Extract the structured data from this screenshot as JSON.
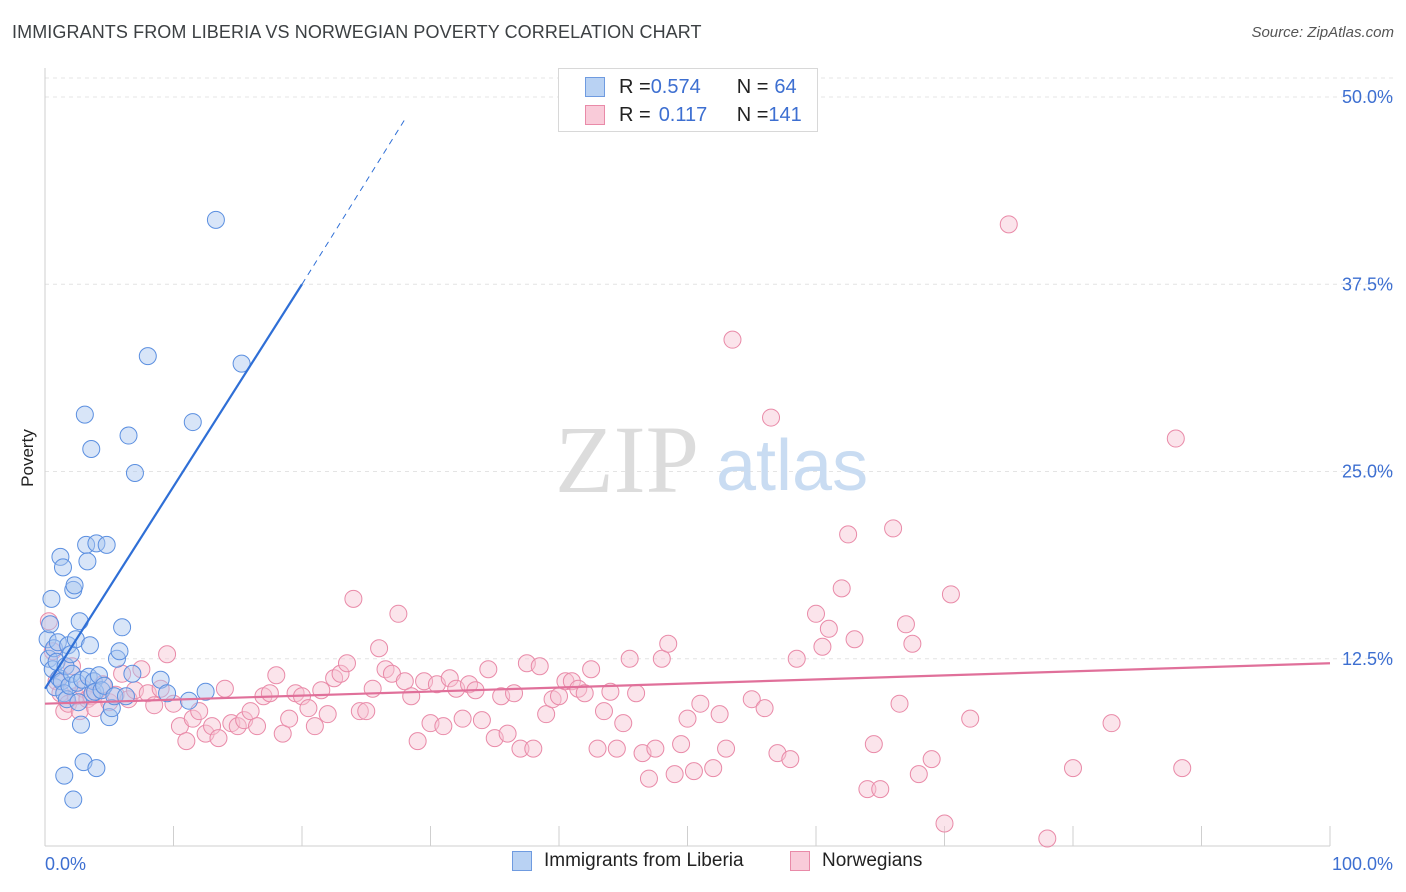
{
  "title": "IMMIGRANTS FROM LIBERIA VS NORWEGIAN POVERTY CORRELATION CHART",
  "source": "Source: ZipAtlas.com",
  "watermark": {
    "zip": "ZIP",
    "atlas": "atlas"
  },
  "legend": {
    "rows": [
      {
        "r_label": "R = ",
        "r_value": "0.574",
        "n_label": "N = ",
        "n_value": "64"
      },
      {
        "r_label": "R = ",
        "r_value": "0.117",
        "n_label": "N = ",
        "n_value": "141"
      }
    ]
  },
  "bottom_legend": [
    "Immigrants from Liberia",
    "Norwegians"
  ],
  "colors": {
    "blue": "#5b8fe0",
    "blue_fill": "#a9c6f0",
    "blue_line": "#2f6fd6",
    "pink": "#e98aa8",
    "pink_fill": "#f6c4d3",
    "pink_line": "#e0709a",
    "axis_text": "#3d6fd1"
  },
  "chart_data": {
    "type": "scatter",
    "ylabel": "Poverty",
    "xlabel": "",
    "xlim": [
      0,
      100
    ],
    "ylim": [
      0,
      50
    ],
    "x_tick_labels": [
      "0.0%",
      "100.0%"
    ],
    "y_ticks": [
      12.5,
      25.0,
      37.5,
      50.0
    ],
    "y_tick_labels": [
      "12.5%",
      "25.0%",
      "37.5%",
      "50.0%"
    ],
    "grid": true,
    "series": [
      {
        "name": "Immigrants from Liberia",
        "r": 0.574,
        "n": 64,
        "trend": {
          "x0": 0,
          "y0": 10.5,
          "x1": 20,
          "y1": 37.5,
          "dash_to_x": 28,
          "dash_to_y": 48.5
        },
        "points": [
          [
            0.2,
            13.8
          ],
          [
            0.3,
            12.5
          ],
          [
            0.4,
            14.8
          ],
          [
            0.5,
            16.5
          ],
          [
            0.6,
            11.8
          ],
          [
            0.7,
            13.2
          ],
          [
            0.8,
            10.6
          ],
          [
            0.9,
            12.3
          ],
          [
            1.0,
            13.6
          ],
          [
            1.1,
            11.2
          ],
          [
            1.2,
            19.3
          ],
          [
            1.3,
            11.0
          ],
          [
            1.4,
            18.6
          ],
          [
            1.5,
            10.2
          ],
          [
            1.6,
            12.0
          ],
          [
            1.7,
            9.8
          ],
          [
            1.8,
            13.4
          ],
          [
            1.9,
            10.7
          ],
          [
            2.0,
            12.8
          ],
          [
            2.1,
            11.5
          ],
          [
            2.2,
            17.1
          ],
          [
            2.3,
            17.4
          ],
          [
            2.4,
            13.8
          ],
          [
            2.5,
            10.9
          ],
          [
            2.6,
            9.6
          ],
          [
            2.7,
            15.0
          ],
          [
            2.8,
            8.1
          ],
          [
            2.9,
            11.1
          ],
          [
            3.0,
            5.6
          ],
          [
            3.1,
            28.8
          ],
          [
            3.2,
            20.1
          ],
          [
            3.3,
            19.0
          ],
          [
            3.4,
            11.3
          ],
          [
            3.5,
            13.4
          ],
          [
            3.6,
            26.5
          ],
          [
            3.7,
            10.2
          ],
          [
            3.8,
            11.0
          ],
          [
            3.9,
            10.3
          ],
          [
            4.0,
            20.2
          ],
          [
            4.2,
            11.4
          ],
          [
            4.4,
            10.4
          ],
          [
            4.6,
            10.7
          ],
          [
            4.8,
            20.1
          ],
          [
            5.0,
            8.6
          ],
          [
            5.2,
            9.2
          ],
          [
            5.4,
            10.0
          ],
          [
            5.6,
            12.5
          ],
          [
            5.8,
            13.0
          ],
          [
            6.0,
            14.6
          ],
          [
            6.3,
            10.0
          ],
          [
            6.5,
            27.4
          ],
          [
            6.8,
            11.5
          ],
          [
            7.0,
            24.9
          ],
          [
            8.0,
            32.7
          ],
          [
            9.0,
            11.1
          ],
          [
            9.5,
            10.2
          ],
          [
            11.2,
            9.7
          ],
          [
            11.5,
            28.3
          ],
          [
            12.5,
            10.3
          ],
          [
            13.3,
            41.8
          ],
          [
            15.3,
            32.2
          ],
          [
            4.0,
            5.2
          ],
          [
            1.5,
            4.7
          ],
          [
            2.2,
            3.1
          ]
        ]
      },
      {
        "name": "Norwegians",
        "r": 0.117,
        "n": 141,
        "trend": {
          "x0": 0,
          "y0": 9.5,
          "x1": 100,
          "y1": 12.2
        },
        "points": [
          [
            0.3,
            15.0
          ],
          [
            0.6,
            13.0
          ],
          [
            0.9,
            11.0
          ],
          [
            1.2,
            10.2
          ],
          [
            1.5,
            9.0
          ],
          [
            1.8,
            9.5
          ],
          [
            2.1,
            12.0
          ],
          [
            2.4,
            10.0
          ],
          [
            2.7,
            9.0
          ],
          [
            3.0,
            10.5
          ],
          [
            3.3,
            9.8
          ],
          [
            3.6,
            10.0
          ],
          [
            3.9,
            9.2
          ],
          [
            4.5,
            10.8
          ],
          [
            5.0,
            9.6
          ],
          [
            5.5,
            10.1
          ],
          [
            6.0,
            11.5
          ],
          [
            6.5,
            9.8
          ],
          [
            7.0,
            10.4
          ],
          [
            7.5,
            11.8
          ],
          [
            8.0,
            10.2
          ],
          [
            8.5,
            9.4
          ],
          [
            9.0,
            10.5
          ],
          [
            9.5,
            12.8
          ],
          [
            10.0,
            9.5
          ],
          [
            10.5,
            8.0
          ],
          [
            11.0,
            7.0
          ],
          [
            11.5,
            8.5
          ],
          [
            12.0,
            9.0
          ],
          [
            12.5,
            7.5
          ],
          [
            13.0,
            8.0
          ],
          [
            13.5,
            7.2
          ],
          [
            14.0,
            10.5
          ],
          [
            14.5,
            8.2
          ],
          [
            15.0,
            8.0
          ],
          [
            15.5,
            8.4
          ],
          [
            16.0,
            9.0
          ],
          [
            16.5,
            8.0
          ],
          [
            17.0,
            10.0
          ],
          [
            17.5,
            10.2
          ],
          [
            18.0,
            11.4
          ],
          [
            18.5,
            7.5
          ],
          [
            19.0,
            8.5
          ],
          [
            19.5,
            10.2
          ],
          [
            20.0,
            10.0
          ],
          [
            20.5,
            9.2
          ],
          [
            21.0,
            8.0
          ],
          [
            21.5,
            10.4
          ],
          [
            22.0,
            8.8
          ],
          [
            22.5,
            11.2
          ],
          [
            23.0,
            11.5
          ],
          [
            23.5,
            12.2
          ],
          [
            24.0,
            16.5
          ],
          [
            24.5,
            9.0
          ],
          [
            25.0,
            9.0
          ],
          [
            25.5,
            10.5
          ],
          [
            26.0,
            13.2
          ],
          [
            26.5,
            11.8
          ],
          [
            27.0,
            11.5
          ],
          [
            27.5,
            15.5
          ],
          [
            28.0,
            11.0
          ],
          [
            28.5,
            10.0
          ],
          [
            29.0,
            7.0
          ],
          [
            29.5,
            11.0
          ],
          [
            30.0,
            8.2
          ],
          [
            30.5,
            10.8
          ],
          [
            31.0,
            8.0
          ],
          [
            31.5,
            11.2
          ],
          [
            32.0,
            10.5
          ],
          [
            32.5,
            8.5
          ],
          [
            33.0,
            10.8
          ],
          [
            33.5,
            10.4
          ],
          [
            34.0,
            8.4
          ],
          [
            34.5,
            11.8
          ],
          [
            35.0,
            7.2
          ],
          [
            35.5,
            10.0
          ],
          [
            36.0,
            7.5
          ],
          [
            36.5,
            10.2
          ],
          [
            37.0,
            6.5
          ],
          [
            37.5,
            12.2
          ],
          [
            38.0,
            6.5
          ],
          [
            38.5,
            12.0
          ],
          [
            39.0,
            8.8
          ],
          [
            39.5,
            9.8
          ],
          [
            40.0,
            10.0
          ],
          [
            40.5,
            11.0
          ],
          [
            41.0,
            11.0
          ],
          [
            41.5,
            10.5
          ],
          [
            42.0,
            10.2
          ],
          [
            42.5,
            11.8
          ],
          [
            43.0,
            6.5
          ],
          [
            43.5,
            9.0
          ],
          [
            44.0,
            10.3
          ],
          [
            44.5,
            6.5
          ],
          [
            45.0,
            8.2
          ],
          [
            45.5,
            12.5
          ],
          [
            46.0,
            10.2
          ],
          [
            46.5,
            6.2
          ],
          [
            47.0,
            4.5
          ],
          [
            47.5,
            6.5
          ],
          [
            48.0,
            12.5
          ],
          [
            48.5,
            13.5
          ],
          [
            49.0,
            4.8
          ],
          [
            49.5,
            6.8
          ],
          [
            50.0,
            8.5
          ],
          [
            50.5,
            5.0
          ],
          [
            51.0,
            9.5
          ],
          [
            52.0,
            5.2
          ],
          [
            52.5,
            8.8
          ],
          [
            53.0,
            6.5
          ],
          [
            53.5,
            33.8
          ],
          [
            55.0,
            9.8
          ],
          [
            56.0,
            9.2
          ],
          [
            56.5,
            28.6
          ],
          [
            57.0,
            6.2
          ],
          [
            58.0,
            5.8
          ],
          [
            58.5,
            12.5
          ],
          [
            60.0,
            15.5
          ],
          [
            60.5,
            13.3
          ],
          [
            61.0,
            14.5
          ],
          [
            62.0,
            17.2
          ],
          [
            62.5,
            20.8
          ],
          [
            63.0,
            13.8
          ],
          [
            64.0,
            3.8
          ],
          [
            64.5,
            6.8
          ],
          [
            65.0,
            3.8
          ],
          [
            66.0,
            21.2
          ],
          [
            66.5,
            9.5
          ],
          [
            67.0,
            14.8
          ],
          [
            67.5,
            13.5
          ],
          [
            68.0,
            4.8
          ],
          [
            69.0,
            5.8
          ],
          [
            70.0,
            1.5
          ],
          [
            70.5,
            16.8
          ],
          [
            72.0,
            8.5
          ],
          [
            75.0,
            41.5
          ],
          [
            78.0,
            0.5
          ],
          [
            80.0,
            5.2
          ],
          [
            83.0,
            8.2
          ],
          [
            88.0,
            27.2
          ],
          [
            88.5,
            5.2
          ]
        ]
      }
    ]
  }
}
